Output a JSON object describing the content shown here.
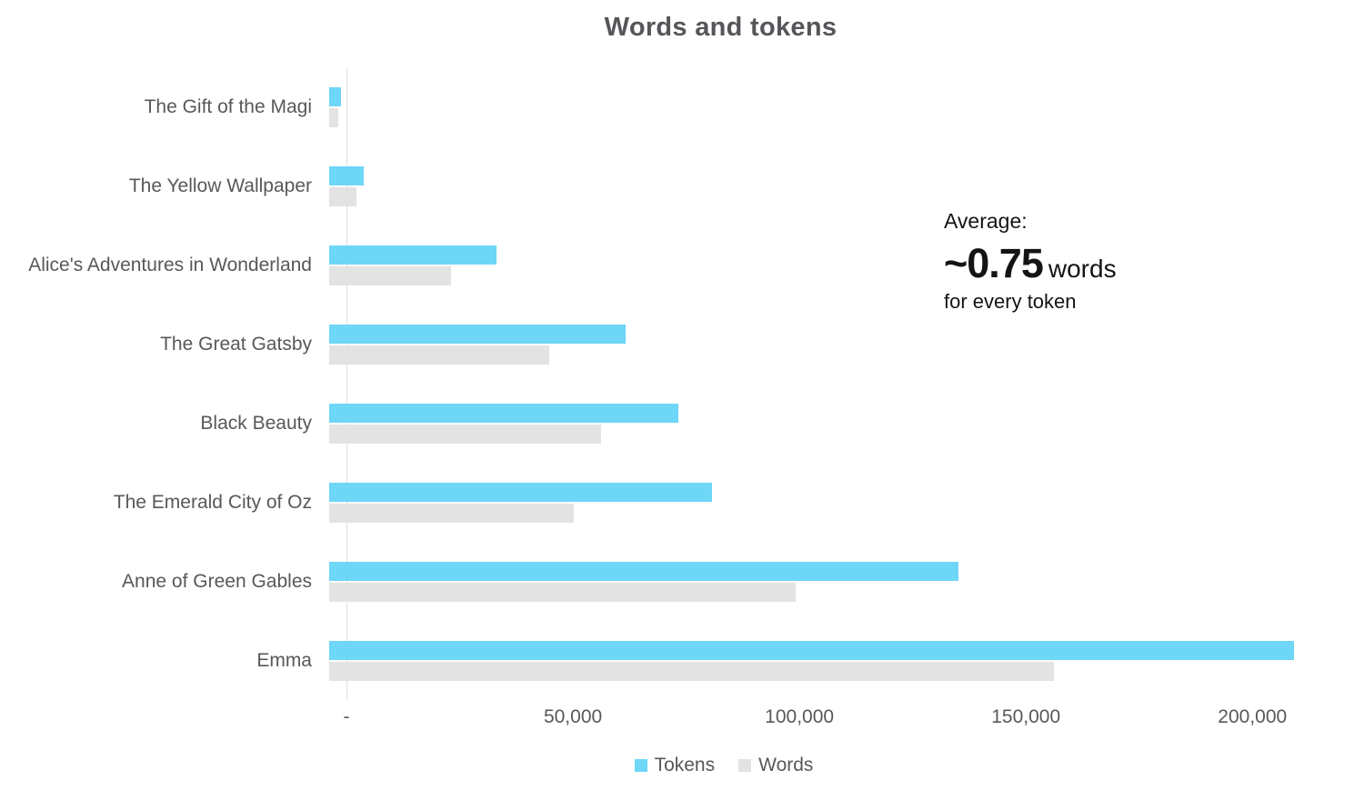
{
  "title": "Words and tokens",
  "legend": {
    "items": [
      {
        "label": "Tokens",
        "color": "#6ed6f7"
      },
      {
        "label": "Words",
        "color": "#e3e3e3"
      }
    ]
  },
  "annotation": {
    "line1": "Average:",
    "value": "~0.75",
    "value_suffix": "words",
    "line2": "for every token"
  },
  "chart_data": {
    "type": "bar",
    "orientation": "horizontal",
    "title": "Words and tokens",
    "categories": [
      "The Gift of the Magi",
      "The Yellow Wallpaper",
      "Alice's Adventures in Wonderland",
      "The Great Gatsby",
      "Black Beauty",
      "The Emerald City of Oz",
      "Anne of Green Gables",
      "Emma"
    ],
    "series": [
      {
        "name": "Tokens",
        "color": "#6ed6f7",
        "values": [
          2700,
          7600,
          37000,
          65500,
          77000,
          84500,
          139000,
          213000
        ]
      },
      {
        "name": "Words",
        "color": "#e3e3e3",
        "values": [
          2100,
          6000,
          27000,
          48500,
          60000,
          54000,
          103000,
          160000
        ]
      }
    ],
    "xlim": [
      0,
      215000
    ],
    "xticks": [
      {
        "value": 0,
        "label": "-"
      },
      {
        "value": 50000,
        "label": "50,000"
      },
      {
        "value": 100000,
        "label": "100,000"
      },
      {
        "value": 150000,
        "label": "150,000"
      },
      {
        "value": 200000,
        "label": "200,000"
      }
    ],
    "grid": false,
    "legend_position": "bottom",
    "annotation_text": "Average: ~0.75 words for every token"
  }
}
